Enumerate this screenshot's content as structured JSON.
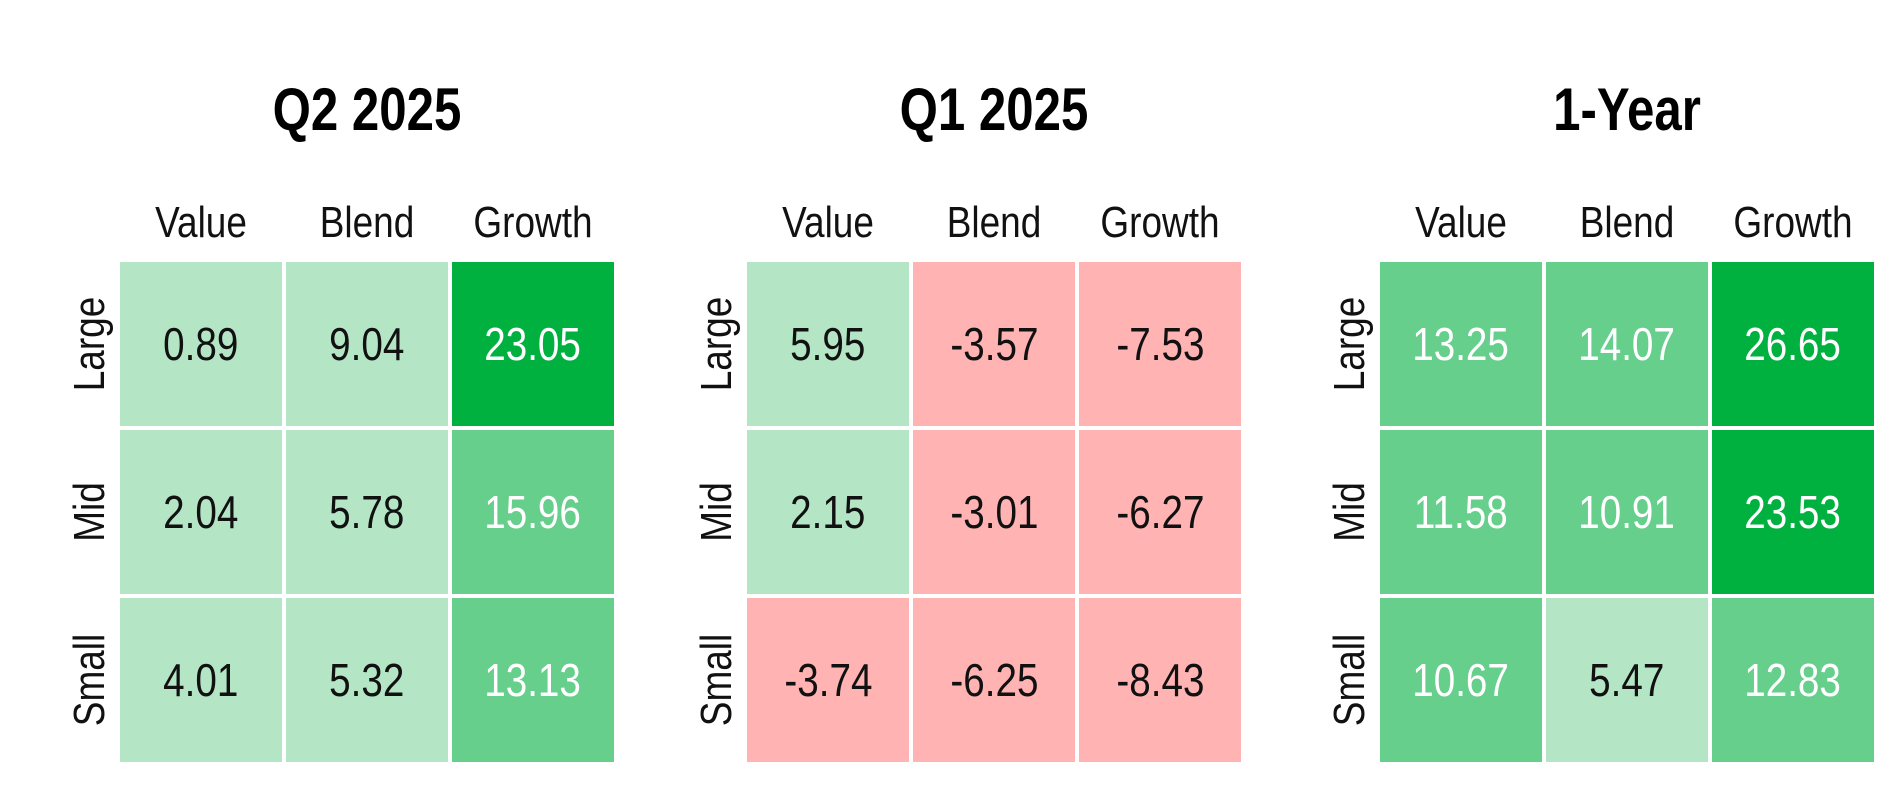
{
  "colors": {
    "strong_positive": "#00b140",
    "medium_positive": "#66cf8c",
    "light_positive": "#b4e6c5",
    "negative": "#ffb3b3",
    "dark_text": "#111111",
    "light_text": "#ffffff"
  },
  "chart_data": [
    {
      "type": "heatmap",
      "title": "Q2 2025",
      "columns": [
        "Value",
        "Blend",
        "Growth"
      ],
      "rows": [
        "Large",
        "Mid",
        "Small"
      ],
      "values": [
        [
          0.89,
          9.04,
          23.05
        ],
        [
          2.04,
          5.78,
          15.96
        ],
        [
          4.01,
          5.32,
          13.13
        ]
      ],
      "labels": [
        [
          "0.89",
          "9.04",
          "23.05"
        ],
        [
          "2.04",
          "5.78",
          "15.96"
        ],
        [
          "4.01",
          "5.32",
          "13.13"
        ]
      ]
    },
    {
      "type": "heatmap",
      "title": "Q1 2025",
      "columns": [
        "Value",
        "Blend",
        "Growth"
      ],
      "rows": [
        "Large",
        "Mid",
        "Small"
      ],
      "values": [
        [
          5.95,
          -3.57,
          -7.53
        ],
        [
          2.15,
          -3.01,
          -6.27
        ],
        [
          -3.74,
          -6.25,
          -8.43
        ]
      ],
      "labels": [
        [
          "5.95",
          "-3.57",
          "-7.53"
        ],
        [
          "2.15",
          "-3.01",
          "-6.27"
        ],
        [
          "-3.74",
          "-6.25",
          "-8.43"
        ]
      ]
    },
    {
      "type": "heatmap",
      "title": "1-Year",
      "columns": [
        "Value",
        "Blend",
        "Growth"
      ],
      "rows": [
        "Large",
        "Mid",
        "Small"
      ],
      "values": [
        [
          13.25,
          14.07,
          26.65
        ],
        [
          11.58,
          10.91,
          23.53
        ],
        [
          10.67,
          5.47,
          12.83
        ]
      ],
      "labels": [
        [
          "13.25",
          "14.07",
          "26.65"
        ],
        [
          "11.58",
          "10.91",
          "23.53"
        ],
        [
          "10.67",
          "5.47",
          "12.83"
        ]
      ]
    }
  ]
}
